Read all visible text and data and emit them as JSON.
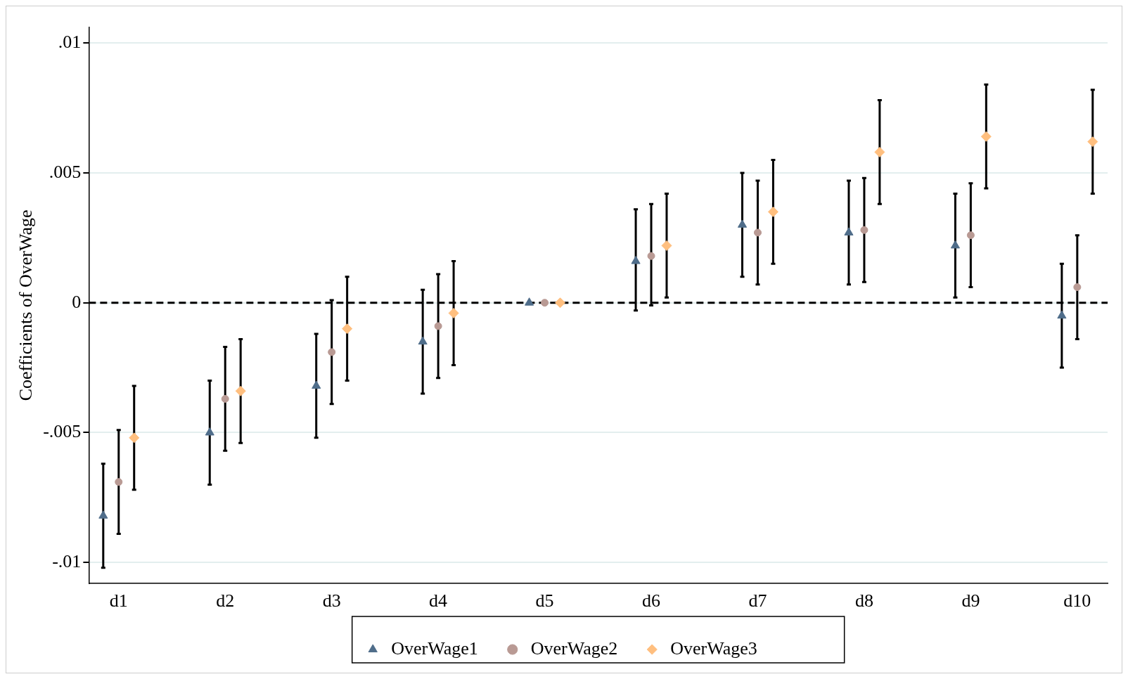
{
  "chart_data": {
    "type": "scatter",
    "ylabel": "Coefficients of OverWage",
    "categories": [
      "d1",
      "d2",
      "d3",
      "d4",
      "d5",
      "d6",
      "d7",
      "d8",
      "d9",
      "d10"
    ],
    "series": [
      {
        "name": "OverWage1",
        "color": "#4f6d8a",
        "marker": "triangle",
        "values": [
          -0.0082,
          -0.005,
          -0.0032,
          -0.0015,
          0,
          0.0016,
          0.003,
          0.0027,
          0.0022,
          -0.0005
        ],
        "errors": [
          [
            -0.0102,
            -0.0062
          ],
          [
            -0.007,
            -0.003
          ],
          [
            -0.0052,
            -0.0012
          ],
          [
            -0.0035,
            0.0005
          ],
          null,
          [
            -0.0003,
            0.0036
          ],
          [
            0.001,
            0.005
          ],
          [
            0.0007,
            0.0047
          ],
          [
            0.0002,
            0.0042
          ],
          [
            -0.0025,
            0.0015
          ]
        ]
      },
      {
        "name": "OverWage2",
        "color": "#b99a94",
        "marker": "circle",
        "values": [
          -0.0069,
          -0.0037,
          -0.0019,
          -0.0009,
          0,
          0.0018,
          0.0027,
          0.0028,
          0.0026,
          0.0006
        ],
        "errors": [
          [
            -0.0089,
            -0.0049
          ],
          [
            -0.0057,
            -0.0017
          ],
          [
            -0.0039,
            0.0001
          ],
          [
            -0.0029,
            0.0011
          ],
          null,
          [
            -0.0001,
            0.0038
          ],
          [
            0.0007,
            0.0047
          ],
          [
            0.0008,
            0.0048
          ],
          [
            0.0006,
            0.0046
          ],
          [
            -0.0014,
            0.0026
          ]
        ]
      },
      {
        "name": "OverWage3",
        "color": "#ffbf7f",
        "marker": "diamond",
        "values": [
          -0.0052,
          -0.0034,
          -0.001,
          -0.0004,
          0,
          0.0022,
          0.0035,
          0.0058,
          0.0064,
          0.0062
        ],
        "errors": [
          [
            -0.0072,
            -0.0032
          ],
          [
            -0.0054,
            -0.0014
          ],
          [
            -0.003,
            0.001
          ],
          [
            -0.0024,
            0.0016
          ],
          null,
          [
            0.0002,
            0.0042
          ],
          [
            0.0015,
            0.0055
          ],
          [
            0.0038,
            0.0078
          ],
          [
            0.0044,
            0.0084
          ],
          [
            0.0042,
            0.0082
          ]
        ]
      }
    ],
    "ylim": [
      -0.0108,
      0.0106
    ],
    "yticks": [
      {
        "value": -0.01,
        "label": "-.01"
      },
      {
        "value": -0.005,
        "label": "-.005"
      },
      0,
      {
        "value": 0.005,
        "label": ".005"
      },
      {
        "value": 0.01,
        "label": ".01"
      }
    ],
    "ref_lines": [
      {
        "axis": "y",
        "value": 0,
        "color": "#000000",
        "line_style": "dashed"
      }
    ],
    "grid": "y",
    "legend": "bottom"
  }
}
